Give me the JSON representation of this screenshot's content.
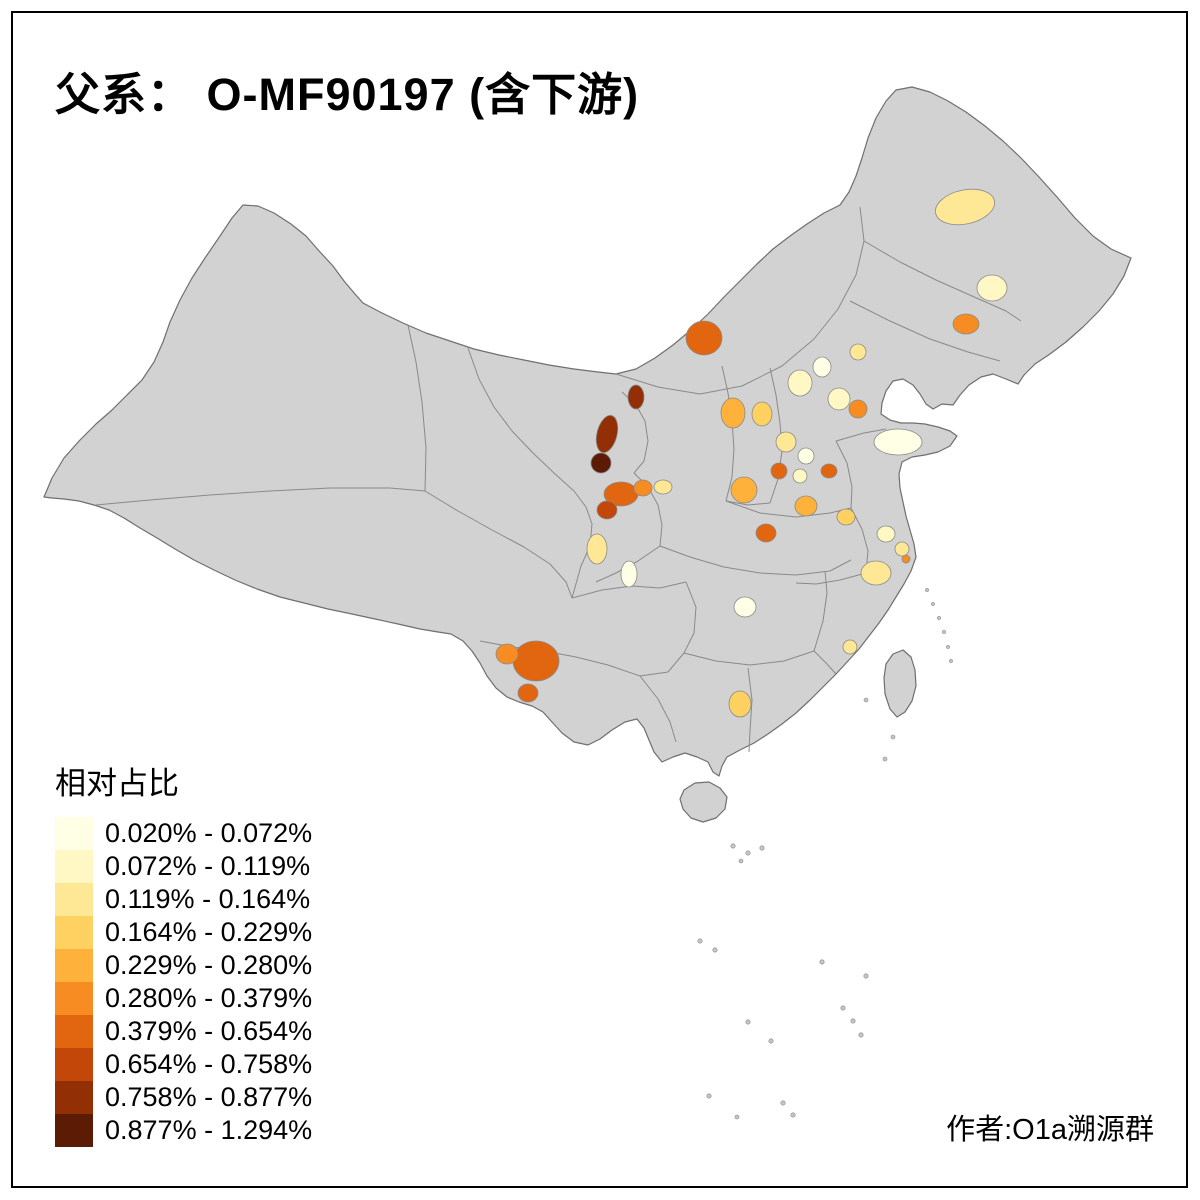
{
  "title": "父系： O-MF90197 (含下游)",
  "attribution": "作者:O1a溯源群",
  "legend": {
    "title": "相对占比",
    "classes": [
      {
        "label": "0.020% - 0.072%",
        "color": "#FFFFE5"
      },
      {
        "label": "0.072% - 0.119%",
        "color": "#FFF8C4"
      },
      {
        "label": "0.119% - 0.164%",
        "color": "#FEE795"
      },
      {
        "label": "0.164% - 0.229%",
        "color": "#FED160"
      },
      {
        "label": "0.229% - 0.280%",
        "color": "#FEB23C"
      },
      {
        "label": "0.280% - 0.379%",
        "color": "#F78D22"
      },
      {
        "label": "0.379% - 0.654%",
        "color": "#E26610"
      },
      {
        "label": "0.654% - 0.758%",
        "color": "#C34708"
      },
      {
        "label": "0.758% - 0.877%",
        "color": "#932F05"
      },
      {
        "label": "0.877% - 1.294%",
        "color": "#5C1B05"
      }
    ]
  },
  "map": {
    "land_color": "#D2D2D2",
    "province_border_color": "#8A8A8A",
    "national_border_color": "#6F6F6F",
    "background_color": "#FFFFFF"
  }
}
